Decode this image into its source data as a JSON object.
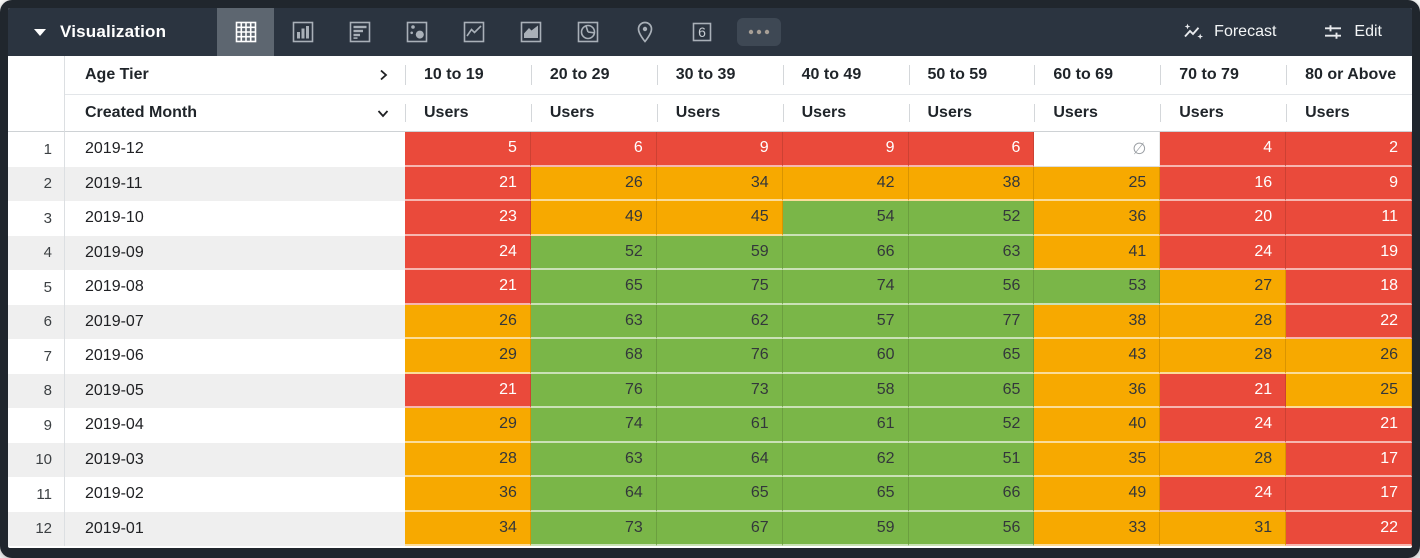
{
  "toolbar": {
    "title": "Visualization",
    "forecast_label": "Forecast",
    "edit_label": "Edit",
    "single_value_glyph": "6",
    "viz_types": [
      "table",
      "bar",
      "horizontal-bar",
      "scatter",
      "line",
      "area",
      "pie",
      "map",
      "single-value",
      "more"
    ],
    "selected_viz": "table"
  },
  "table": {
    "pivot_label": "Age Tier",
    "row_label": "Created Month",
    "measure_label": "Users",
    "null_symbol": "∅",
    "columns": [
      "10 to 19",
      "20 to 29",
      "30 to 39",
      "40 to 49",
      "50 to 59",
      "60 to 69",
      "70 to 79",
      "80 or Above"
    ],
    "rows": [
      {
        "num": 1,
        "month": "2019-12",
        "values": [
          5,
          6,
          9,
          9,
          6,
          null,
          4,
          2
        ],
        "colors": [
          "red",
          "red",
          "red",
          "red",
          "red",
          null,
          "red",
          "red"
        ]
      },
      {
        "num": 2,
        "month": "2019-11",
        "values": [
          21,
          26,
          34,
          42,
          38,
          25,
          16,
          9
        ],
        "colors": [
          "red",
          "orange",
          "orange",
          "orange",
          "orange",
          "orange",
          "red",
          "red"
        ]
      },
      {
        "num": 3,
        "month": "2019-10",
        "values": [
          23,
          49,
          45,
          54,
          52,
          36,
          20,
          11
        ],
        "colors": [
          "red",
          "orange",
          "orange",
          "green",
          "green",
          "orange",
          "red",
          "red"
        ]
      },
      {
        "num": 4,
        "month": "2019-09",
        "values": [
          24,
          52,
          59,
          66,
          63,
          41,
          24,
          19
        ],
        "colors": [
          "red",
          "green",
          "green",
          "green",
          "green",
          "orange",
          "red",
          "red"
        ]
      },
      {
        "num": 5,
        "month": "2019-08",
        "values": [
          21,
          65,
          75,
          74,
          56,
          53,
          27,
          18
        ],
        "colors": [
          "red",
          "green",
          "green",
          "green",
          "green",
          "green",
          "orange",
          "red"
        ]
      },
      {
        "num": 6,
        "month": "2019-07",
        "values": [
          26,
          63,
          62,
          57,
          77,
          38,
          28,
          22
        ],
        "colors": [
          "orange",
          "green",
          "green",
          "green",
          "green",
          "orange",
          "orange",
          "red"
        ]
      },
      {
        "num": 7,
        "month": "2019-06",
        "values": [
          29,
          68,
          76,
          60,
          65,
          43,
          28,
          26
        ],
        "colors": [
          "orange",
          "green",
          "green",
          "green",
          "green",
          "orange",
          "orange",
          "orange"
        ]
      },
      {
        "num": 8,
        "month": "2019-05",
        "values": [
          21,
          76,
          73,
          58,
          65,
          36,
          21,
          25
        ],
        "colors": [
          "red",
          "green",
          "green",
          "green",
          "green",
          "orange",
          "red",
          "orange"
        ]
      },
      {
        "num": 9,
        "month": "2019-04",
        "values": [
          29,
          74,
          61,
          61,
          52,
          40,
          24,
          21
        ],
        "colors": [
          "orange",
          "green",
          "green",
          "green",
          "green",
          "orange",
          "red",
          "red"
        ]
      },
      {
        "num": 10,
        "month": "2019-03",
        "values": [
          28,
          63,
          64,
          62,
          51,
          35,
          28,
          17
        ],
        "colors": [
          "orange",
          "green",
          "green",
          "green",
          "green",
          "orange",
          "orange",
          "red"
        ]
      },
      {
        "num": 11,
        "month": "2019-02",
        "values": [
          36,
          64,
          65,
          65,
          66,
          49,
          24,
          17
        ],
        "colors": [
          "orange",
          "green",
          "green",
          "green",
          "green",
          "orange",
          "red",
          "red"
        ]
      },
      {
        "num": 12,
        "month": "2019-01",
        "values": [
          34,
          73,
          67,
          59,
          56,
          33,
          31,
          22
        ],
        "colors": [
          "orange",
          "green",
          "green",
          "green",
          "green",
          "orange",
          "orange",
          "red"
        ]
      }
    ]
  },
  "colors": {
    "red": "#EA4A3B",
    "orange": "#F7A900",
    "green": "#7AB648",
    "toolbar_bg": "#2B3440",
    "selected_tile": "#5D6670",
    "frame": "#20262D"
  }
}
